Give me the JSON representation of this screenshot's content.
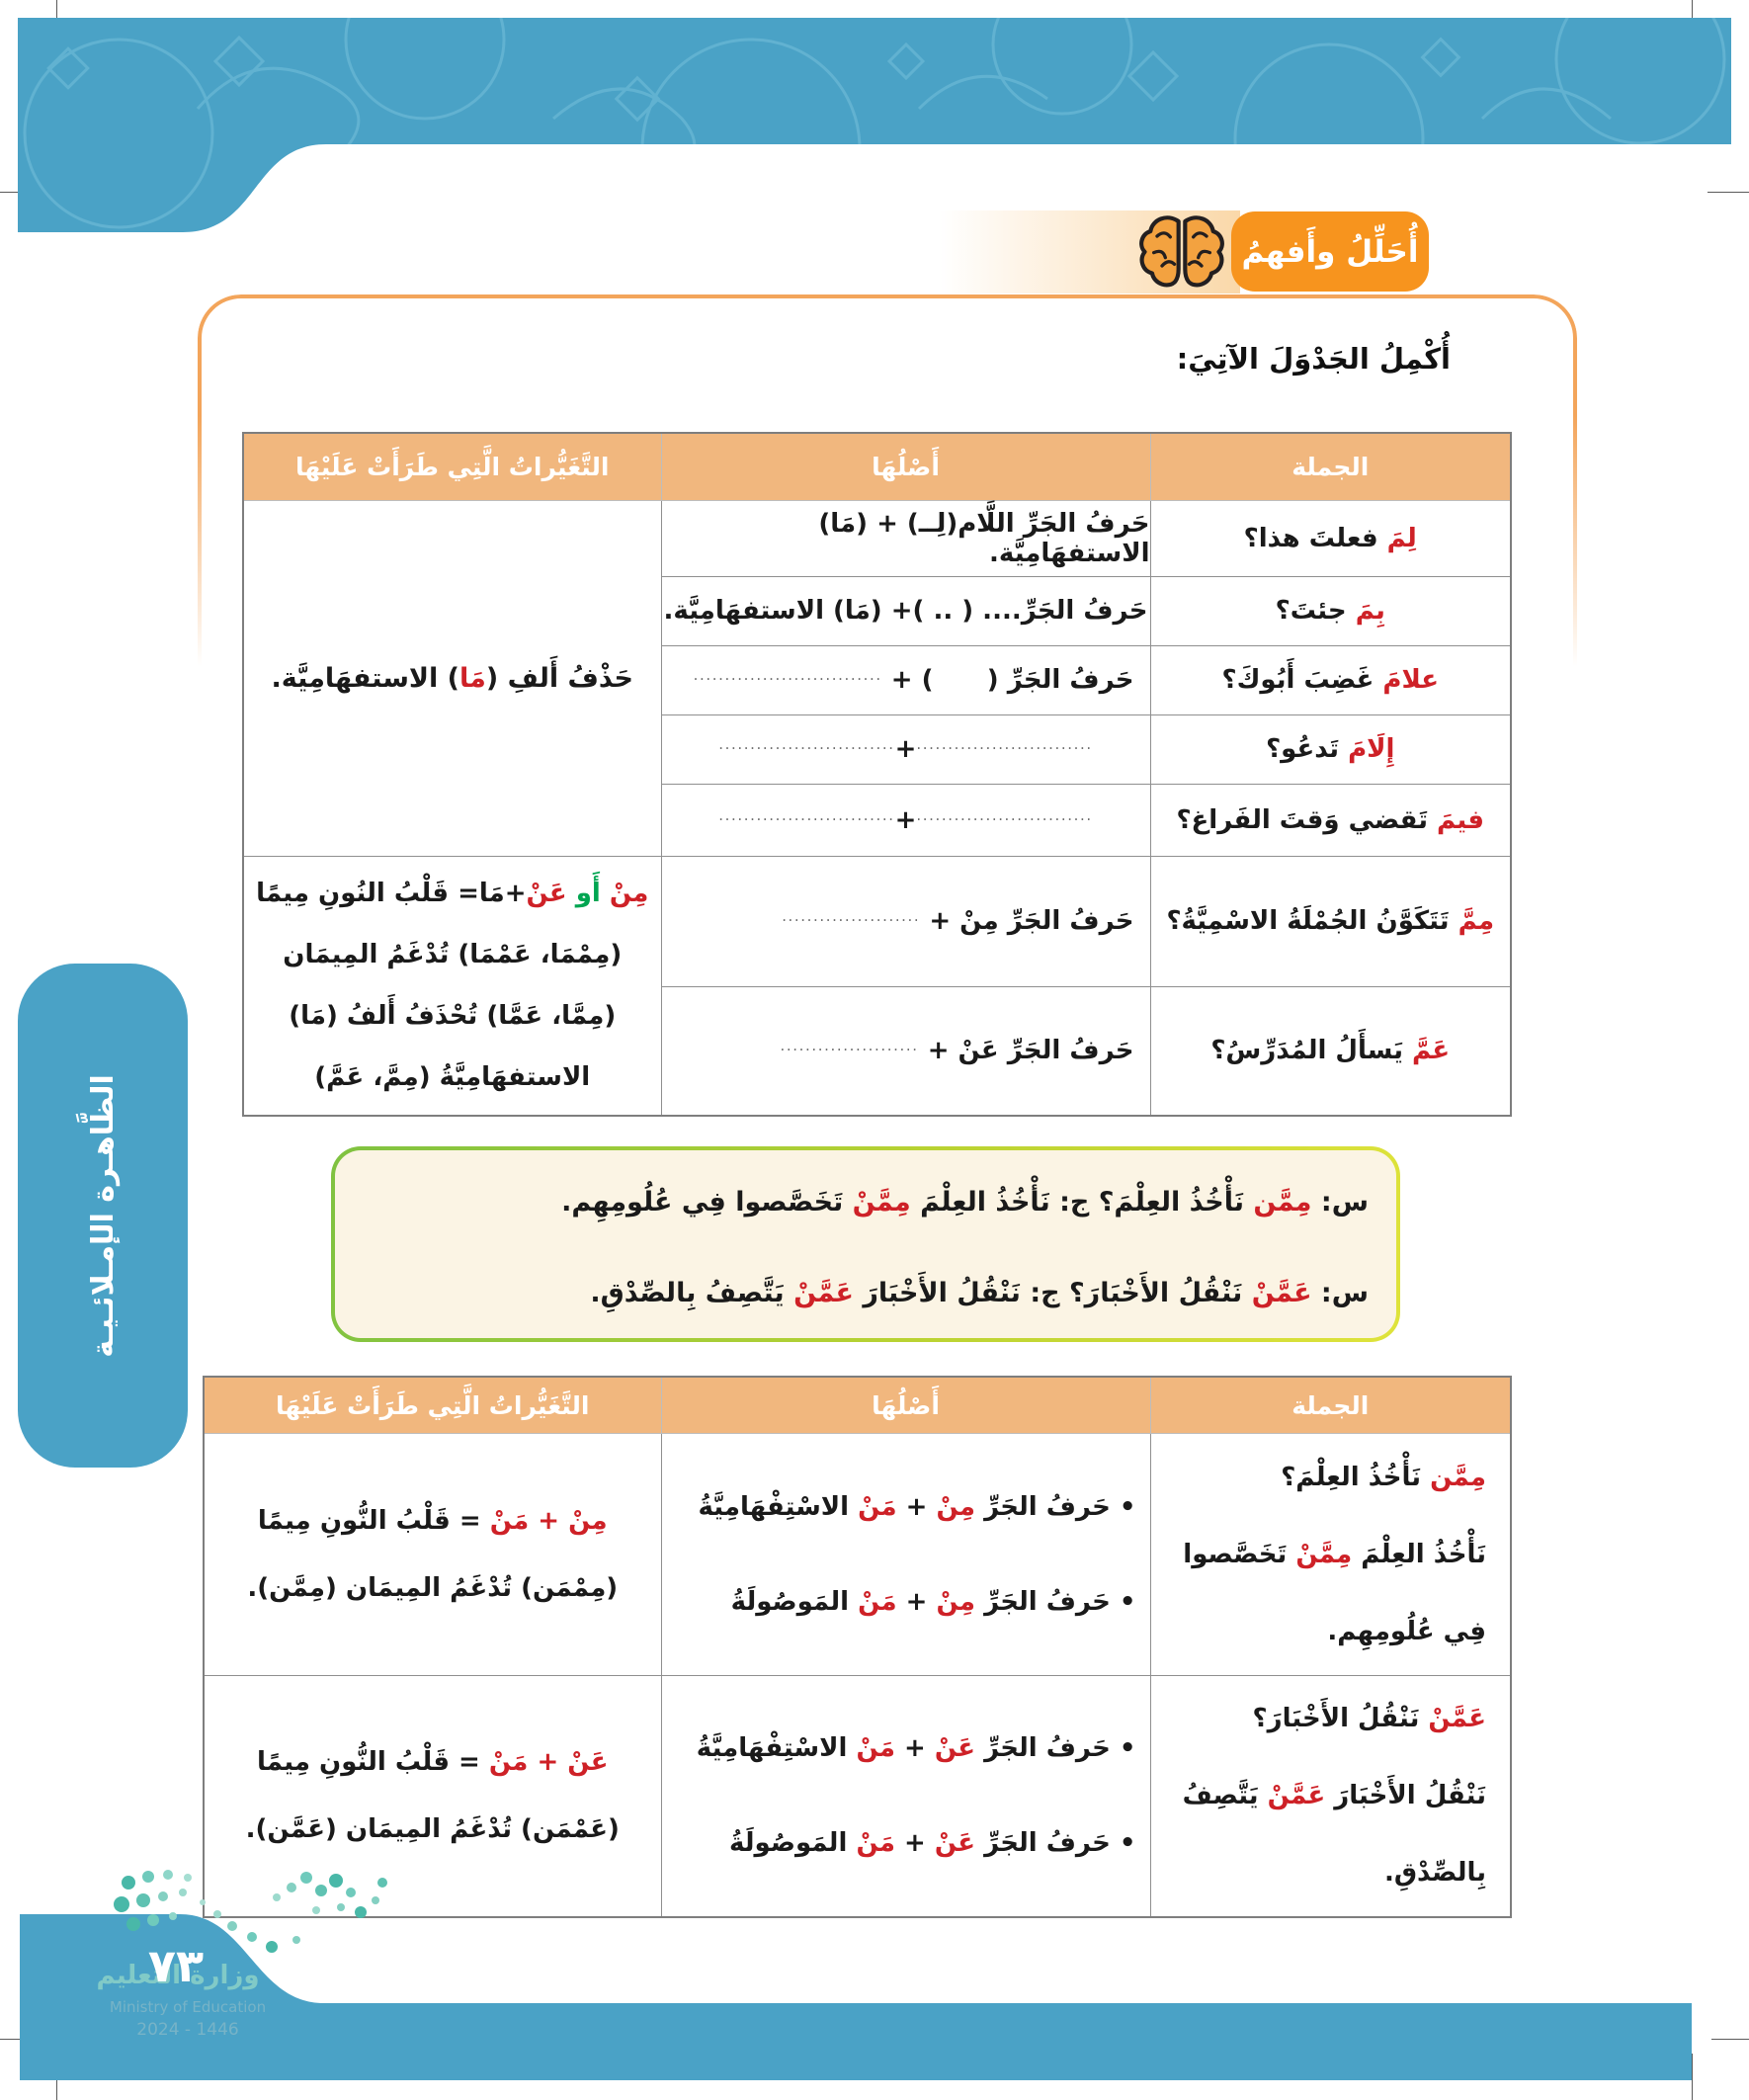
{
  "page": {
    "badge_label": "أُحَلِّلُ وأَفهمُ",
    "title": "أُكْمِلُ الجَدْوَلَ الآتِيَ:",
    "sidebar_tab": "الظَّاهـرة الإمـلائـيـة",
    "page_number": "٧٣",
    "watermark": {
      "ar": "وزارة التعليم",
      "en": "Ministry of Education",
      "years": "2024 - 1446"
    },
    "colors": {
      "band_blue": "#4AA2C6",
      "badge_orange": "#F7941E",
      "header_tan": "#F1B77E",
      "accent_red": "#CE2127",
      "accent_green": "#00A551",
      "frame_orange": "#F3A55B",
      "example_border_green": "#7FC241",
      "example_border_yellow": "#DFE33B",
      "example_bg": "#FBF4E4"
    }
  },
  "table_headers": {
    "sentence": "الجملة",
    "origin": "أَصْلُهَا",
    "changes": "التَّغَيُّراتُ الَّتِي طَرَأَتْ عَلَيْهَا"
  },
  "table1": {
    "rows": [
      {
        "sentence": [
          {
            "t": "لِمَ",
            "c": "red"
          },
          {
            "t": " فعلتَ هذا؟"
          }
        ],
        "origin": [
          {
            "t": "حَرفُ الجَرِّ اللَّام(لِــ) + (مَا) الاستفهَامِيَّة."
          }
        ]
      },
      {
        "sentence": [
          {
            "t": "بِمَ",
            "c": "red"
          },
          {
            "t": " جئتَ؟"
          }
        ],
        "origin": [
          {
            "t": "حَرفُ الجَرِّ.... ( .. )+ (مَا) الاستفهَامِيَّة."
          }
        ]
      },
      {
        "sentence": [
          {
            "t": "علامَ",
            "c": "red"
          },
          {
            "t": " غَضِبَ أَبُوكَ؟"
          }
        ],
        "origin": [
          {
            "t": "حَرفُ الجَرِّ (      ) + "
          },
          {
            "t": "..............................",
            "c": "dots"
          }
        ]
      },
      {
        "sentence": [
          {
            "t": "إِلَامَ",
            "c": "red"
          },
          {
            "t": " تَدعُو؟"
          }
        ],
        "origin": [
          {
            "t": "............................",
            "c": "dots"
          },
          {
            "t": "+"
          },
          {
            "t": "............................",
            "c": "dots"
          }
        ]
      },
      {
        "sentence": [
          {
            "t": "فيمَ",
            "c": "red"
          },
          {
            "t": " تَقضي وَقتَ الفَراغ؟"
          }
        ],
        "origin": [
          {
            "t": "............................",
            "c": "dots"
          },
          {
            "t": "+"
          },
          {
            "t": "............................",
            "c": "dots"
          }
        ]
      },
      {
        "sentence": [
          {
            "t": "مِمَّ",
            "c": "red"
          },
          {
            "t": " تَتَكَوَّنُ الجُمْلَةُ الاسْمِيَّةُ؟"
          }
        ],
        "origin": [
          {
            "t": "حَرفُ الجَرِّ مِنْ + "
          },
          {
            "t": "......................",
            "c": "dots"
          }
        ]
      },
      {
        "sentence": [
          {
            "t": "عَمَّ",
            "c": "red"
          },
          {
            "t": " يَسأَلُ المُدَرِّسُ؟"
          }
        ],
        "origin": [
          {
            "t": "حَرفُ الجَرِّ عَنْ + "
          },
          {
            "t": "......................",
            "c": "dots"
          }
        ]
      }
    ],
    "changes_top": [
      [
        {
          "t": "حَذْفُ أَلفِ ("
        },
        {
          "t": "مَا",
          "c": "red"
        },
        {
          "t": ") الاستفهَامِيَّة."
        }
      ]
    ],
    "changes_bottom": [
      [
        {
          "t": "مِنْ",
          "c": "red"
        },
        {
          "t": " "
        },
        {
          "t": "أَو",
          "c": "green"
        },
        {
          "t": " "
        },
        {
          "t": "عَنْ",
          "c": "red"
        },
        {
          "t": "+مَا= قَلْبُ النُونِ مِيمًا"
        }
      ],
      [
        {
          "t": "(مِمْمَا، عَمْمَا) تُدْغَمُ المِيمَان"
        }
      ],
      [
        {
          "t": "(مِمَّا، عَمَّا) تُحْذَفُ أَلفُ (مَا)"
        }
      ],
      [
        {
          "t": "الاستفهَامِيَّةُ (مِمَّ، عَمَّ)"
        }
      ]
    ]
  },
  "examples": {
    "line1": [
      {
        "t": "س: "
      },
      {
        "t": "مِمَّن",
        "c": "red"
      },
      {
        "t": " نَأْخُذُ العِلْمَ؟ ج: نَأْخُذُ العِلْمَ "
      },
      {
        "t": "مِمَّنْ",
        "c": "red"
      },
      {
        "t": " تَخَصَّصوا فِي عُلُومِهِم."
      }
    ],
    "line2": [
      {
        "t": "س: "
      },
      {
        "t": "عَمَّنْ",
        "c": "red"
      },
      {
        "t": " نَنْقُلُ الأَخْبَارَ؟ ج: نَنْقُلُ الأَخْبَارَ "
      },
      {
        "t": "عَمَّنْ",
        "c": "red"
      },
      {
        "t": " يَتَّصِفُ بِالصِّدْقِ."
      }
    ]
  },
  "table2": {
    "rows": [
      {
        "sentence": [
          [
            {
              "t": "مِمَّن",
              "c": "red"
            },
            {
              "t": " نَأْخُذُ العِلْمَ؟"
            }
          ],
          [
            {
              "t": "نَأْخُذُ العِلْمَ "
            },
            {
              "t": "مِمَّنْ",
              "c": "red"
            },
            {
              "t": " تَخَصَّصوا"
            }
          ],
          [
            {
              "t": "فِي عُلُومِهِم."
            }
          ]
        ],
        "origin": [
          [
            {
              "t": "• حَرفُ الجَرِّ "
            },
            {
              "t": "مِنْ",
              "c": "red"
            },
            {
              "t": " + "
            },
            {
              "t": "مَنْ",
              "c": "red"
            },
            {
              "t": " الاسْتِفْهَامِيَّةُ"
            }
          ],
          [
            {
              "t": "• حَرفُ الجَرِّ "
            },
            {
              "t": "مِنْ",
              "c": "red"
            },
            {
              "t": " + "
            },
            {
              "t": "مَنْ",
              "c": "red"
            },
            {
              "t": " المَوصُولَةُ"
            }
          ]
        ],
        "changes": [
          [
            {
              "t": "مِنْ + مَنْ",
              "c": "red"
            },
            {
              "t": " = قَلْبُ النُّونِ مِيمًا"
            }
          ],
          [
            {
              "t": "(مِمْمَن) تُدْغَمُ المِيمَان (مِمَّن)."
            }
          ]
        ]
      },
      {
        "sentence": [
          [
            {
              "t": "عَمَّنْ",
              "c": "red"
            },
            {
              "t": " نَنْقُلُ الأَخْبَارَ؟"
            }
          ],
          [
            {
              "t": "نَنْقُلُ الأَخْبَارَ "
            },
            {
              "t": "عَمَّنْ",
              "c": "red"
            },
            {
              "t": " يَتَّصِفُ"
            }
          ],
          [
            {
              "t": "بِالصِّدْقِ."
            }
          ]
        ],
        "origin": [
          [
            {
              "t": "• حَرفُ الجَرِّ "
            },
            {
              "t": "عَنْ",
              "c": "red"
            },
            {
              "t": " + "
            },
            {
              "t": "مَنْ",
              "c": "red"
            },
            {
              "t": " الاسْتِفْهَامِيَّةُ"
            }
          ],
          [
            {
              "t": "• حَرفُ الجَرِّ "
            },
            {
              "t": "عَنْ",
              "c": "red"
            },
            {
              "t": " + "
            },
            {
              "t": "مَنْ",
              "c": "red"
            },
            {
              "t": " المَوصُولَةُ"
            }
          ]
        ],
        "changes": [
          [
            {
              "t": "عَنْ + مَنْ",
              "c": "red"
            },
            {
              "t": " = قَلْبُ النُّونِ مِيمًا"
            }
          ],
          [
            {
              "t": "(عَمْمَن) تُدْغَمُ المِيمَان (عَمَّن)."
            }
          ]
        ]
      }
    ]
  }
}
